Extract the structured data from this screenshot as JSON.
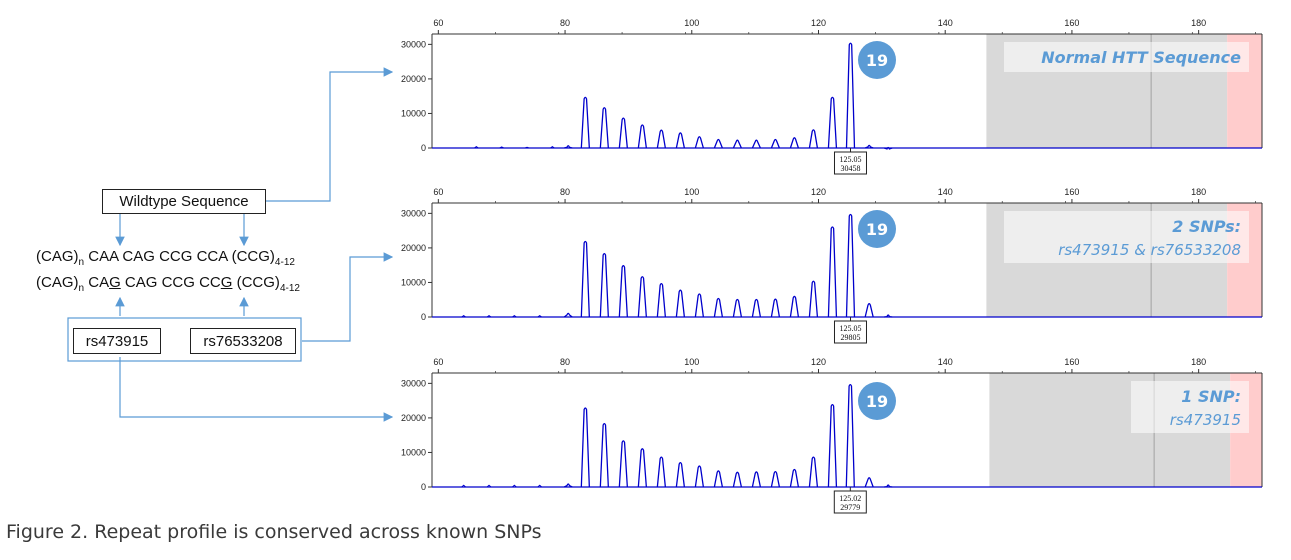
{
  "left": {
    "wildtype_label": "Wildtype Sequence",
    "seq1": {
      "a": "(CAG)",
      "a_sub": "n",
      "b": " CAA CAG CCG CCA (CCG)",
      "b_sub": "4-12"
    },
    "seq2": {
      "a": "(CAG)",
      "a_sub": "n",
      "b1": " CA",
      "u1": "G",
      "b2": " CAG CCG CC",
      "u2": "G",
      "b3": " (CCG)",
      "b_sub": "4-12"
    },
    "snp1": "rs473915",
    "snp2": "rs76533208"
  },
  "caption": "Figure 2. Repeat profile is conserved across known SNPs",
  "colors": {
    "trace": "#0000cc",
    "badge": "#5b9bd5",
    "shade_gray": "#d9d9d9",
    "shade_red": "#ffcccc",
    "arrow": "#5b9bd5",
    "annotation": "#5b9bd5"
  },
  "chart_data": [
    {
      "type": "line",
      "x_ticks": [
        60,
        80,
        100,
        120,
        140,
        160,
        180
      ],
      "y_ticks": [
        0,
        10000,
        20000,
        30000
      ],
      "xlim": [
        59,
        190
      ],
      "ylim": [
        0,
        33000
      ],
      "badge": "19",
      "annotation": [
        "Normal HTT Sequence"
      ],
      "peak_label": {
        "size": "125.05",
        "height": "30458"
      },
      "peaks": [
        [
          80.5,
          800
        ],
        [
          83.2,
          14800
        ],
        [
          86.2,
          11800
        ],
        [
          89.2,
          8800
        ],
        [
          92.2,
          6800
        ],
        [
          95.2,
          5300
        ],
        [
          98.2,
          4500
        ],
        [
          101.2,
          3400
        ],
        [
          104.2,
          2600
        ],
        [
          107.2,
          2400
        ],
        [
          110.2,
          2400
        ],
        [
          113.2,
          2600
        ],
        [
          116.2,
          3100
        ],
        [
          119.2,
          5400
        ],
        [
          122.2,
          14800
        ],
        [
          125.05,
          30458
        ],
        [
          128.0,
          900
        ],
        [
          131.0,
          300
        ]
      ],
      "small_peaks": [
        [
          66,
          400
        ],
        [
          70,
          300
        ],
        [
          74,
          200
        ],
        [
          78,
          400
        ]
      ]
    },
    {
      "type": "line",
      "x_ticks": [
        60,
        80,
        100,
        120,
        140,
        160,
        180
      ],
      "y_ticks": [
        0,
        10000,
        20000,
        30000
      ],
      "xlim": [
        59,
        190
      ],
      "ylim": [
        0,
        33000
      ],
      "badge": "19",
      "annotation": [
        "2 SNPs:",
        "rs473915 & rs76533208"
      ],
      "peak_label": {
        "size": "125.05",
        "height": "29805"
      },
      "peaks": [
        [
          80.5,
          1200
        ],
        [
          83.2,
          22000
        ],
        [
          86.2,
          18500
        ],
        [
          89.2,
          15000
        ],
        [
          92.2,
          11800
        ],
        [
          95.2,
          9800
        ],
        [
          98.2,
          7900
        ],
        [
          101.2,
          6800
        ],
        [
          104.2,
          5500
        ],
        [
          107.2,
          5200
        ],
        [
          110.2,
          5200
        ],
        [
          113.2,
          5300
        ],
        [
          116.2,
          6100
        ],
        [
          119.2,
          10500
        ],
        [
          122.2,
          26200
        ],
        [
          125.05,
          29805
        ],
        [
          128.0,
          4000
        ],
        [
          131.0,
          700
        ]
      ],
      "small_peaks": [
        [
          64,
          400
        ],
        [
          68,
          400
        ],
        [
          72,
          400
        ],
        [
          76,
          400
        ]
      ]
    },
    {
      "type": "line",
      "x_ticks": [
        60,
        80,
        100,
        120,
        140,
        160,
        180
      ],
      "y_ticks": [
        0,
        10000,
        20000,
        30000
      ],
      "xlim": [
        59,
        190
      ],
      "ylim": [
        0,
        33000
      ],
      "badge": "19",
      "annotation": [
        "1 SNP:",
        "rs473915"
      ],
      "peak_label": {
        "size": "125.02",
        "height": "29779"
      },
      "peaks": [
        [
          80.5,
          1000
        ],
        [
          83.2,
          23000
        ],
        [
          86.2,
          18500
        ],
        [
          89.2,
          13500
        ],
        [
          92.2,
          11200
        ],
        [
          95.2,
          8800
        ],
        [
          98.2,
          7200
        ],
        [
          101.2,
          6200
        ],
        [
          104.2,
          4800
        ],
        [
          107.2,
          4400
        ],
        [
          110.2,
          4500
        ],
        [
          113.2,
          4600
        ],
        [
          116.2,
          5200
        ],
        [
          119.2,
          8800
        ],
        [
          122.2,
          24000
        ],
        [
          125.02,
          29779
        ],
        [
          128.0,
          2800
        ],
        [
          131.0,
          700
        ]
      ],
      "small_peaks": [
        [
          64,
          500
        ],
        [
          68,
          500
        ],
        [
          72,
          500
        ],
        [
          76,
          500
        ]
      ]
    }
  ]
}
